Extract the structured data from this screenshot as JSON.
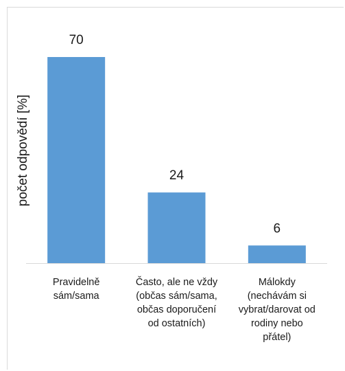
{
  "chart_data": {
    "type": "bar",
    "title": "",
    "xlabel": "",
    "ylabel": "počet odpovědí [%]",
    "ylim": [
      0,
      70
    ],
    "grid": false,
    "legend": "none",
    "categories": [
      [
        "Pravidelně",
        "sám/sama"
      ],
      [
        "Často, ale ne vždy",
        "(občas sám/sama,",
        "občas doporučení",
        "od ostatních)"
      ],
      [
        "Málokdy",
        "(nechávám si",
        "vybrat/darovat od",
        "rodiny nebo",
        "přátel)"
      ]
    ],
    "values": [
      70,
      24,
      6
    ],
    "data_labels": [
      "70",
      "24",
      "6"
    ],
    "bar_color": "#5b9bd5",
    "axis_color": "#d9d9d9"
  }
}
